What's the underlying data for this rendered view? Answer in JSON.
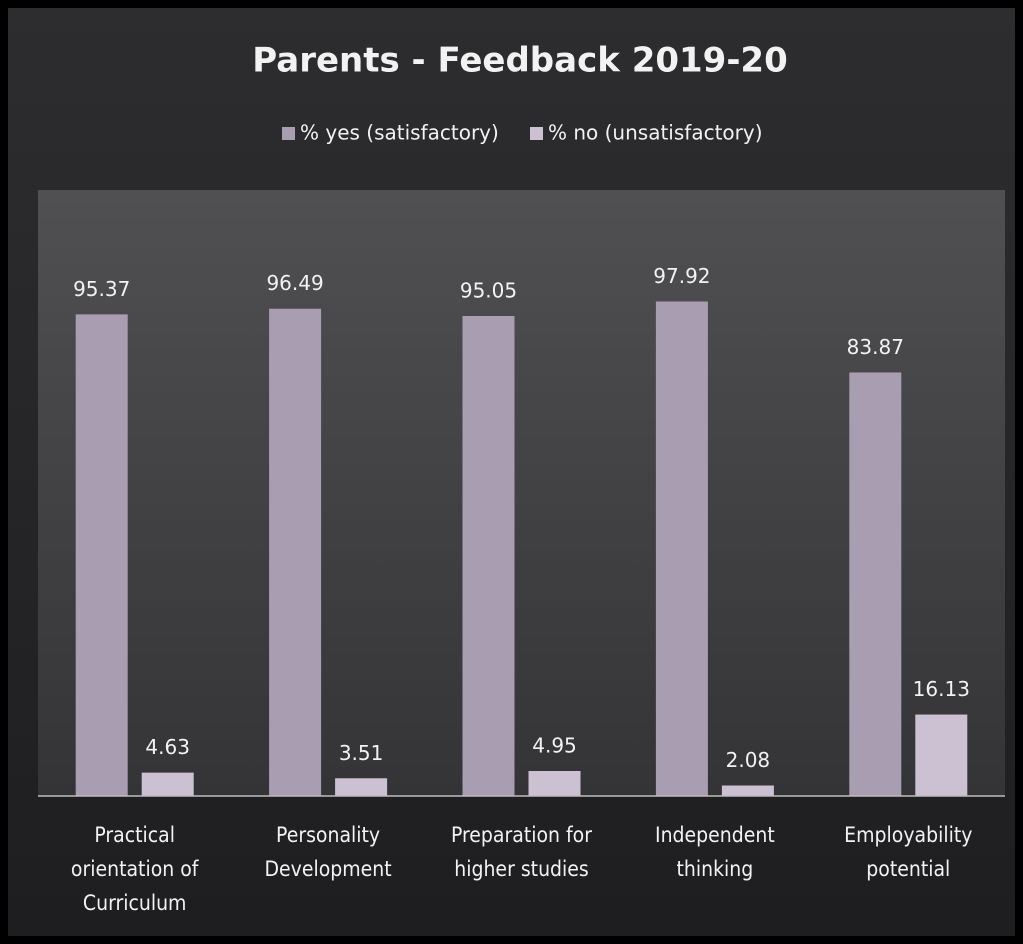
{
  "chart_data": {
    "type": "bar",
    "title": "Parents - Feedback 2019-20",
    "categories": [
      "Practical orientation of Curriculum",
      "Personality Development",
      "Preparation for higher studies",
      "Independent thinking",
      "Employability potential"
    ],
    "series": [
      {
        "name": "% yes (satisfactory)",
        "color": "#a99db2",
        "values": [
          95.37,
          96.49,
          95.05,
          97.92,
          83.87
        ]
      },
      {
        "name": "% no (unsatisfactory)",
        "color": "#cbc1d3",
        "values": [
          4.63,
          3.51,
          4.95,
          2.08,
          16.13
        ]
      }
    ],
    "ylim": [
      0,
      120
    ],
    "legend": "top",
    "grid": false
  }
}
